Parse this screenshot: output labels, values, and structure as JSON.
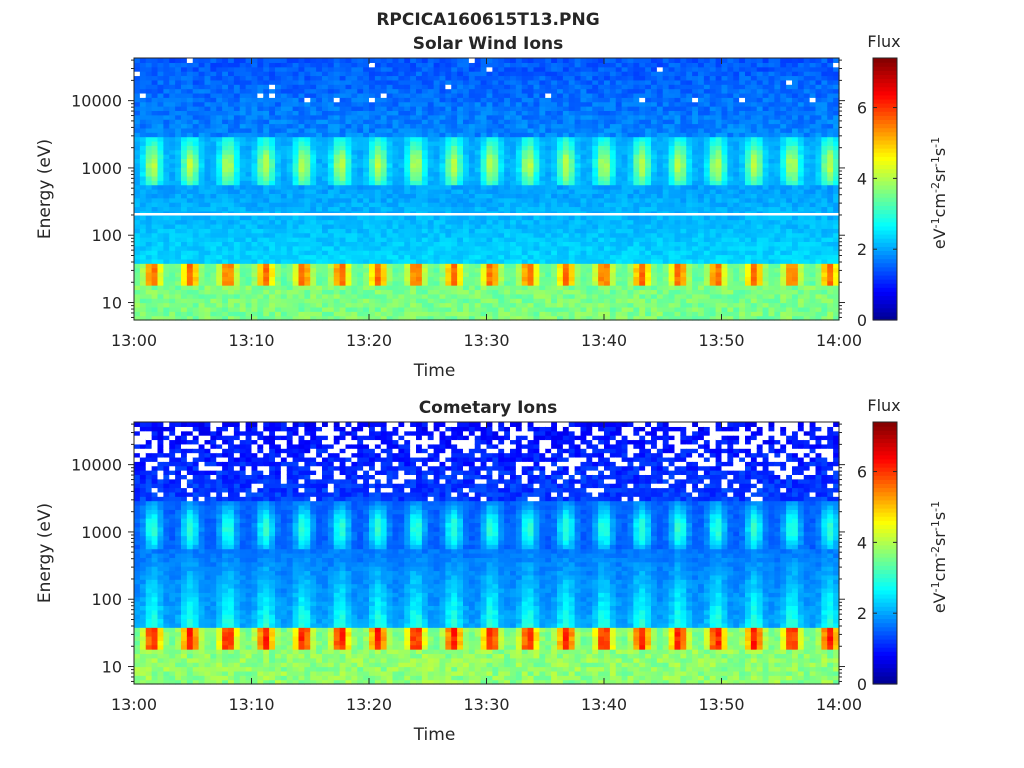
{
  "figure_title": "RPCICA160615T13.PNG",
  "colormap": [
    "#00008f",
    "#0000ff",
    "#00ffff",
    "#ffff00",
    "#ff0000",
    "#800000"
  ],
  "chart_data": [
    {
      "type": "heatmap",
      "title": "Solar Wind Ions",
      "xlabel": "Time",
      "ylabel": "Energy (eV)",
      "x_range": [
        "13:00",
        "14:00"
      ],
      "x_ticks": [
        "13:00",
        "13:10",
        "13:20",
        "13:30",
        "13:40",
        "13:50",
        "14:00"
      ],
      "yscale": "log",
      "ylim": [
        5.5,
        43000
      ],
      "y_ticks": [
        10,
        100,
        1000,
        10000
      ],
      "y_tick_labels": [
        "10",
        "100",
        "1000",
        "10000"
      ],
      "colorbar": {
        "title": "Flux",
        "label": "eV-1cm-2sr-1s-1",
        "range": [
          0,
          7.4
        ],
        "ticks": [
          0,
          2,
          4,
          6
        ]
      },
      "sweep_period_min": 3.2,
      "energy_bands": [
        {
          "energy_range_eV": [
            5.5,
            17
          ],
          "flux": 3.5
        },
        {
          "energy_range_eV": [
            17,
            40
          ],
          "flux_peak": 5.5
        },
        {
          "energy_range_eV": [
            40,
            200
          ],
          "flux": 2.4
        },
        {
          "energy_range_eV": [
            600,
            3000
          ],
          "flux_peak": 3.3
        },
        {
          "energy_range_eV": [
            3000,
            43000
          ],
          "flux": 1.4
        }
      ],
      "white_line_energy_eV": 205
    },
    {
      "type": "heatmap",
      "title": "Cometary Ions",
      "xlabel": "Time",
      "ylabel": "Energy (eV)",
      "x_range": [
        "13:00",
        "14:00"
      ],
      "x_ticks": [
        "13:00",
        "13:10",
        "13:20",
        "13:30",
        "13:40",
        "13:50",
        "14:00"
      ],
      "yscale": "log",
      "ylim": [
        5.5,
        43000
      ],
      "y_ticks": [
        10,
        100,
        1000,
        10000
      ],
      "y_tick_labels": [
        "10",
        "100",
        "1000",
        "10000"
      ],
      "colorbar": {
        "title": "Flux",
        "label": "eV-1cm-2sr-1s-1",
        "range": [
          0,
          7.4
        ],
        "ticks": [
          0,
          2,
          4,
          6
        ]
      },
      "sweep_period_min": 3.2,
      "energy_bands": [
        {
          "energy_range_eV": [
            5.5,
            17
          ],
          "flux": 3.6
        },
        {
          "energy_range_eV": [
            17,
            40
          ],
          "flux_peak": 6.0
        },
        {
          "energy_range_eV": [
            40,
            400
          ],
          "flux": 2.0
        },
        {
          "energy_range_eV": [
            600,
            3000
          ],
          "flux_peak": 2.8
        },
        {
          "energy_range_eV": [
            3000,
            43000
          ],
          "flux": 0.9,
          "gaps": true
        }
      ]
    }
  ]
}
